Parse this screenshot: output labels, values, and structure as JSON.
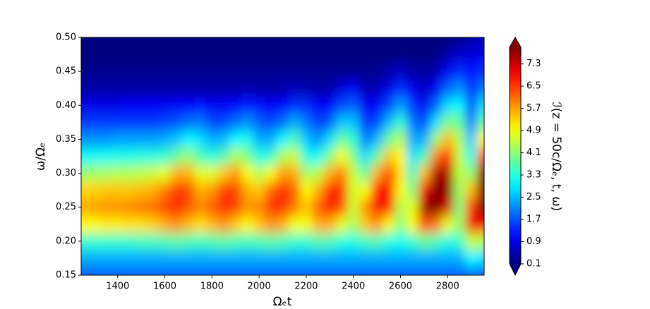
{
  "chart_data": {
    "type": "contourf",
    "xlabel": "Ωₑt",
    "ylabel": "ω/Ωₑ",
    "x": [
      1250,
      1300,
      1350,
      1400,
      1450,
      1500,
      1550,
      1600,
      1650,
      1700,
      1750,
      1800,
      1850,
      1900,
      1950,
      2000,
      2050,
      2100,
      2150,
      2200,
      2250,
      2300,
      2350,
      2400,
      2450,
      2500,
      2550,
      2600,
      2650,
      2700,
      2750,
      2800,
      2850,
      2900,
      2950
    ],
    "y": [
      0.15,
      0.175,
      0.2,
      0.225,
      0.25,
      0.275,
      0.3,
      0.325,
      0.35,
      0.375,
      0.4,
      0.425,
      0.45,
      0.475,
      0.5
    ],
    "z": [
      [
        1.8,
        1.8,
        1.8,
        1.8,
        1.8,
        1.8,
        1.8,
        1.8,
        1.8,
        1.8,
        1.8,
        1.8,
        1.8,
        1.8,
        1.8,
        1.8,
        1.8,
        1.8,
        1.8,
        1.8,
        1.8,
        1.8,
        1.8,
        1.8,
        1.8,
        1.8,
        1.8,
        1.8,
        1.8,
        1.8,
        1.8,
        1.8,
        1.8,
        1.8,
        1.8
      ],
      [
        2.4,
        2.4,
        2.4,
        2.4,
        2.4,
        2.4,
        2.4,
        2.4,
        2.4,
        2.4,
        2.4,
        2.4,
        2.4,
        2.4,
        2.4,
        2.4,
        2.4,
        2.4,
        2.4,
        2.4,
        2.4,
        2.4,
        2.4,
        2.4,
        2.4,
        2.4,
        2.4,
        2.4,
        2.4,
        2.4,
        2.4,
        2.4,
        2.4,
        3.0,
        2.8
      ],
      [
        3.4,
        3.4,
        3.4,
        3.4,
        3.4,
        3.5,
        3.5,
        3.6,
        3.7,
        3.6,
        3.5,
        3.6,
        3.7,
        3.6,
        3.5,
        3.6,
        3.7,
        3.6,
        3.4,
        3.4,
        3.6,
        3.6,
        3.3,
        3.2,
        3.5,
        3.6,
        3.3,
        3.1,
        3.4,
        3.8,
        3.6,
        3.2,
        3.4,
        4.6,
        4.4
      ],
      [
        5.0,
        5.0,
        5.1,
        5.1,
        5.2,
        5.2,
        5.3,
        5.6,
        5.8,
        5.5,
        5.2,
        5.5,
        5.8,
        5.4,
        5.0,
        5.4,
        5.8,
        5.6,
        4.9,
        4.9,
        5.6,
        5.6,
        4.8,
        4.3,
        5.4,
        5.8,
        5.0,
        4.0,
        5.0,
        6.4,
        6.0,
        4.8,
        4.2,
        7.0,
        7.0
      ],
      [
        5.6,
        5.7,
        5.8,
        5.8,
        5.9,
        6.0,
        6.1,
        6.4,
        6.6,
        6.3,
        5.9,
        6.2,
        6.6,
        6.4,
        5.8,
        5.9,
        6.5,
        6.6,
        6.0,
        5.4,
        6.2,
        6.8,
        6.3,
        4.6,
        5.8,
        7.0,
        6.6,
        4.4,
        4.8,
        7.6,
        8.0,
        7.2,
        4.0,
        6.5,
        8.0
      ],
      [
        5.3,
        5.3,
        5.4,
        5.4,
        5.4,
        5.5,
        5.6,
        6.0,
        6.5,
        6.4,
        5.6,
        5.8,
        6.5,
        6.5,
        5.6,
        5.4,
        6.2,
        6.6,
        6.2,
        5.0,
        5.6,
        6.7,
        6.6,
        4.6,
        5.0,
        6.8,
        7.0,
        5.0,
        4.0,
        7.0,
        8.0,
        7.8,
        4.2,
        5.5,
        8.0
      ],
      [
        4.2,
        4.3,
        4.3,
        4.4,
        4.4,
        4.5,
        4.6,
        4.8,
        5.6,
        5.6,
        4.8,
        4.7,
        5.4,
        5.8,
        5.0,
        4.4,
        5.0,
        5.8,
        5.6,
        4.3,
        4.5,
        5.6,
        6.0,
        4.6,
        3.8,
        5.6,
        6.5,
        5.2,
        3.5,
        5.5,
        7.5,
        7.6,
        4.5,
        4.2,
        7.8
      ],
      [
        3.0,
        3.1,
        3.1,
        3.2,
        3.2,
        3.3,
        3.3,
        3.4,
        3.8,
        4.2,
        3.6,
        3.3,
        3.6,
        4.4,
        4.0,
        3.2,
        3.4,
        4.4,
        4.6,
        3.2,
        3.1,
        4.0,
        5.0,
        4.0,
        2.8,
        3.8,
        5.4,
        5.0,
        2.8,
        3.6,
        6.0,
        6.8,
        4.5,
        3.2,
        6.5
      ],
      [
        2.2,
        2.2,
        2.2,
        2.3,
        2.3,
        2.3,
        2.3,
        2.4,
        2.6,
        3.0,
        2.8,
        2.4,
        2.5,
        3.0,
        3.2,
        2.4,
        2.4,
        3.0,
        3.6,
        2.6,
        2.2,
        2.8,
        3.8,
        3.4,
        2.0,
        2.5,
        3.8,
        4.4,
        2.4,
        2.4,
        4.2,
        5.5,
        4.4,
        2.6,
        5.0
      ],
      [
        1.5,
        1.5,
        1.5,
        1.5,
        1.5,
        1.5,
        1.5,
        1.6,
        1.7,
        1.9,
        2.0,
        1.6,
        1.6,
        1.9,
        2.2,
        1.8,
        1.6,
        1.9,
        2.4,
        2.0,
        1.5,
        1.8,
        2.6,
        2.6,
        1.5,
        1.6,
        2.5,
        3.4,
        2.0,
        1.6,
        2.8,
        4.0,
        3.8,
        2.0,
        3.8
      ],
      [
        0.9,
        0.9,
        0.9,
        0.9,
        1.0,
        1.0,
        1.0,
        1.0,
        1.0,
        1.1,
        1.2,
        1.0,
        1.0,
        1.1,
        1.3,
        1.2,
        1.0,
        1.1,
        1.4,
        1.4,
        1.0,
        1.1,
        1.6,
        1.8,
        1.0,
        1.0,
        1.6,
        2.3,
        1.5,
        1.0,
        1.8,
        2.8,
        3.0,
        1.6,
        2.8
      ],
      [
        0.4,
        0.4,
        0.4,
        0.4,
        0.4,
        0.4,
        0.4,
        0.4,
        0.4,
        0.4,
        0.4,
        0.4,
        0.4,
        0.4,
        0.5,
        0.4,
        0.4,
        0.4,
        0.6,
        0.4,
        0.4,
        0.4,
        0.8,
        1.0,
        0.5,
        0.5,
        0.9,
        1.4,
        1.0,
        0.6,
        1.0,
        1.8,
        2.2,
        1.4,
        2.0
      ],
      [
        0.2,
        0.2,
        0.2,
        0.2,
        0.2,
        0.2,
        0.2,
        0.2,
        0.2,
        0.2,
        0.2,
        0.2,
        0.2,
        0.2,
        0.2,
        0.2,
        0.2,
        0.2,
        0.2,
        0.2,
        0.2,
        0.2,
        0.2,
        0.2,
        0.2,
        0.2,
        0.4,
        0.6,
        0.4,
        0.3,
        0.5,
        1.0,
        1.4,
        1.2,
        1.4
      ],
      [
        0.1,
        0.1,
        0.1,
        0.1,
        0.1,
        0.1,
        0.1,
        0.1,
        0.1,
        0.1,
        0.1,
        0.1,
        0.1,
        0.1,
        0.1,
        0.1,
        0.1,
        0.1,
        0.1,
        0.1,
        0.1,
        0.1,
        0.1,
        0.1,
        0.1,
        0.1,
        0.1,
        0.1,
        0.1,
        0.1,
        0.1,
        0.4,
        0.7,
        0.8,
        0.9
      ],
      [
        0.1,
        0.1,
        0.1,
        0.1,
        0.1,
        0.1,
        0.1,
        0.1,
        0.1,
        0.1,
        0.1,
        0.1,
        0.1,
        0.1,
        0.1,
        0.1,
        0.1,
        0.1,
        0.1,
        0.1,
        0.1,
        0.1,
        0.1,
        0.1,
        0.1,
        0.1,
        0.1,
        0.1,
        0.1,
        0.1,
        0.1,
        0.1,
        0.1,
        0.4,
        0.5
      ]
    ],
    "xlim": [
      1245,
      2955
    ],
    "ylim": [
      0.15,
      0.5
    ],
    "xticks": [
      1400,
      1600,
      1800,
      2000,
      2200,
      2400,
      2600,
      2800
    ],
    "yticks": [
      {
        "value": 0.15,
        "label": "0.15"
      },
      {
        "value": 0.2,
        "label": "0.20"
      },
      {
        "value": 0.25,
        "label": "0.25"
      },
      {
        "value": 0.3,
        "label": "0.30"
      },
      {
        "value": 0.35,
        "label": "0.35"
      },
      {
        "value": 0.4,
        "label": "0.40"
      },
      {
        "value": 0.45,
        "label": "0.45"
      },
      {
        "value": 0.5,
        "label": "0.50"
      }
    ],
    "colormap": "jet",
    "colorbar": {
      "label": "ℐ(z = 50c/Ωₑ, t, ω)",
      "lim": [
        0.1,
        7.9
      ],
      "ticks": [
        0.1,
        0.9,
        1.7,
        2.5,
        3.3,
        4.1,
        4.9,
        5.7,
        6.5,
        7.3
      ]
    }
  }
}
